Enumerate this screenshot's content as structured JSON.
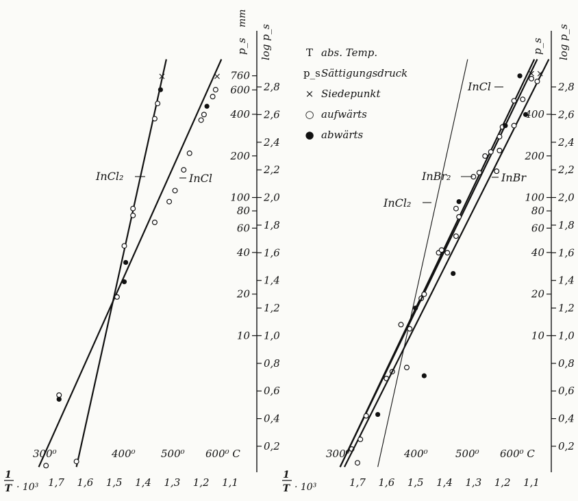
{
  "chart_data": [
    {
      "type": "line",
      "title": "",
      "xlabel": "1/T · 10³",
      "ylabel_left": "p_s mm",
      "ylabel_right": "log p_s",
      "x_ticks": [
        "1,7",
        "1,6",
        "1,5",
        "1,4",
        "1,3",
        "1,2",
        "1,1"
      ],
      "x_reversed": true,
      "xlim": [
        1.76,
        1.06
      ],
      "ylim_log": [
        0.05,
        3.0
      ],
      "p_ticks": [
        "760",
        "600",
        "400",
        "200",
        "100",
        "80",
        "60",
        "40",
        "20",
        "10"
      ],
      "logp_ticks": [
        "2,8",
        "2,6",
        "2,4",
        "2,2",
        "2,0",
        "1,8",
        "1,6",
        "1,4",
        "1,2",
        "1,0",
        "0,8",
        "0,6",
        "0,4",
        "0,2"
      ],
      "temp_labels": [
        "300⁰",
        "400⁰",
        "500⁰",
        "600⁰ C"
      ],
      "series": [
        {
          "name": "InCl₂",
          "line": [
            [
              1.63,
              0.05
            ],
            [
              1.32,
              3.0
            ]
          ],
          "open": [
            [
              1.36,
              2.57
            ],
            [
              1.35,
              2.68
            ],
            [
              1.435,
              1.92
            ],
            [
              1.435,
              1.87
            ],
            [
              1.465,
              1.65
            ],
            [
              1.63,
              0.09
            ]
          ],
          "filled": [
            [
              1.34,
              2.78
            ],
            [
              1.46,
              1.53
            ],
            [
              1.465,
              1.39
            ]
          ],
          "boil": [
            [
              1.335,
              2.88
            ]
          ]
        },
        {
          "name": "InCl",
          "line": [
            [
              1.76,
              0.05
            ],
            [
              1.13,
              3.0
            ]
          ],
          "open": [
            [
              1.49,
              1.28
            ],
            [
              1.36,
              1.82
            ],
            [
              1.31,
              1.97
            ],
            [
              1.29,
              2.05
            ],
            [
              1.26,
              2.2
            ],
            [
              1.24,
              2.32
            ],
            [
              1.2,
              2.56
            ],
            [
              1.19,
              2.6
            ],
            [
              1.16,
              2.73
            ],
            [
              1.15,
              2.78
            ],
            [
              1.69,
              0.57
            ],
            [
              1.735,
              0.06
            ]
          ],
          "filled": [
            [
              1.69,
              0.54
            ],
            [
              1.18,
              2.66
            ]
          ],
          "boil": [
            [
              1.145,
              2.88
            ]
          ]
        }
      ]
    },
    {
      "type": "line",
      "title": "",
      "xlabel": "1/T · 10³",
      "ylabel_left": "p_s",
      "ylabel_right": "log p_s",
      "x_ticks": [
        "1,7",
        "1,6",
        "1,5",
        "1,4",
        "1,3",
        "1,2",
        "1,1"
      ],
      "x_reversed": true,
      "xlim": [
        1.76,
        1.04
      ],
      "ylim_log": [
        0.05,
        3.0
      ],
      "p_ticks": [
        "400",
        "200",
        "100",
        "80",
        "60",
        "40",
        "20",
        "10"
      ],
      "logp_ticks": [
        "2,8",
        "2,6",
        "2,4",
        "2,2",
        "2,0",
        "1,8",
        "1,6",
        "1,4",
        "1,2",
        "1,0",
        "0,8",
        "0,6",
        "0,4",
        "0,2"
      ],
      "temp_labels": [
        "300⁰",
        "400⁰",
        "500⁰",
        "600⁰ C"
      ],
      "series": [
        {
          "name": "InCl₂",
          "line": [
            [
              1.63,
              0.05
            ],
            [
              1.32,
              3.0
            ]
          ],
          "open": [],
          "filled": [],
          "boil": []
        },
        {
          "name": "InCl",
          "line": [
            [
              1.76,
              0.05
            ],
            [
              1.09,
              3.0
            ]
          ],
          "open": [
            [
              1.58,
              0.74
            ],
            [
              1.52,
              1.05
            ],
            [
              1.48,
              1.27
            ],
            [
              1.42,
              1.6
            ],
            [
              1.36,
              1.92
            ],
            [
              1.3,
              2.15
            ],
            [
              1.26,
              2.3
            ],
            [
              1.2,
              2.51
            ],
            [
              1.16,
              2.7
            ],
            [
              1.1,
              2.86
            ],
            [
              1.72,
              0.18
            ]
          ],
          "filled": [
            [
              1.5,
              1.2
            ]
          ],
          "boil": [
            [
              1.1,
              2.9
            ]
          ]
        },
        {
          "name": "InBr₂",
          "line": [
            [
              1.76,
              0.05
            ],
            [
              1.08,
              3.0
            ]
          ],
          "open": [
            [
              1.7,
              0.08
            ],
            [
              1.67,
              0.42
            ],
            [
              1.6,
              0.69
            ],
            [
              1.47,
              1.3
            ],
            [
              1.41,
              1.62
            ],
            [
              1.35,
              1.86
            ],
            [
              1.28,
              2.18
            ],
            [
              1.24,
              2.33
            ],
            [
              1.21,
              2.44
            ],
            [
              1.13,
              2.71
            ]
          ],
          "filled": [
            [
              1.14,
              2.88
            ],
            [
              1.35,
              1.97
            ]
          ],
          "boil": []
        },
        {
          "name": "InBr",
          "line": [
            [
              1.745,
              0.05
            ],
            [
              1.04,
              3.0
            ]
          ],
          "open": [
            [
              1.69,
              0.25
            ],
            [
              1.55,
              1.08
            ],
            [
              1.53,
              0.77
            ],
            [
              1.39,
              1.6
            ],
            [
              1.36,
              1.72
            ],
            [
              1.22,
              2.19
            ],
            [
              1.21,
              2.34
            ],
            [
              1.16,
              2.52
            ],
            [
              1.08,
              2.84
            ]
          ],
          "filled": [
            [
              1.63,
              0.43
            ],
            [
              1.47,
              0.71
            ],
            [
              1.37,
              1.45
            ],
            [
              1.19,
              2.52
            ],
            [
              1.12,
              2.6
            ]
          ],
          "boil": [
            [
              1.07,
              2.9
            ]
          ]
        }
      ]
    }
  ],
  "legend": [
    {
      "symbol": "T",
      "text": "abs. Temp.",
      "icon": "text-symbol"
    },
    {
      "symbol": "p_s",
      "text": "Sättigungsdruck",
      "icon": "text-symbol"
    },
    {
      "symbol": "×",
      "text": "Siedepunkt",
      "icon": "cross-marker-icon"
    },
    {
      "symbol": "○",
      "text": "aufwärts",
      "icon": "open-circle-icon"
    },
    {
      "symbol": "●",
      "text": "abwärts",
      "icon": "filled-circle-icon"
    }
  ],
  "labels": {
    "left_incl2": "InCl₂",
    "left_incl": "InCl",
    "right_incl": "InCl",
    "right_inbr2": "InBr₂",
    "right_inbr": "InBr",
    "right_incl2": "InCl₂",
    "axis_ps": "p_s",
    "axis_mm": "mm",
    "axis_logps": "log p_s",
    "xlabel_frac_num": "1",
    "xlabel_frac_den": "T",
    "xlabel_suffix": "· 10³"
  }
}
